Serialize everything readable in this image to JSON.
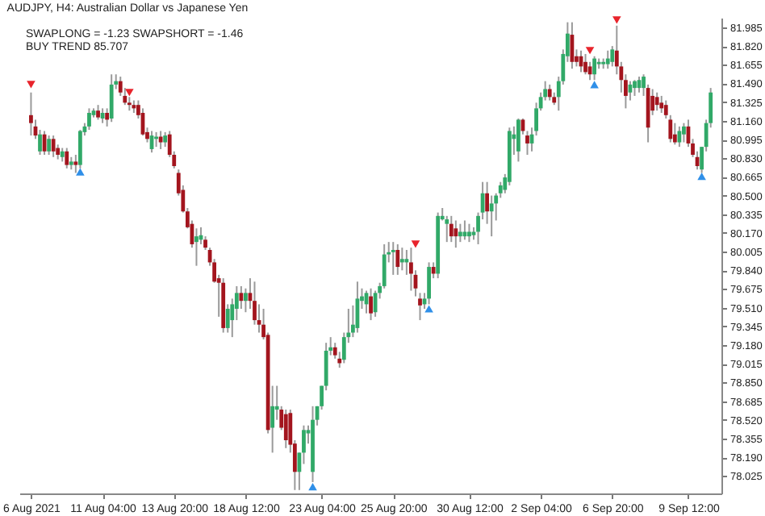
{
  "chart_data": {
    "type": "candlestick",
    "title": "AUDJPY, H4:  Australian Dollar vs Japanese Yen",
    "annotations": [
      "SWAPLONG = -1.23   SWAPSHORT = -1.46",
      "BUY TREND 85.707"
    ],
    "categories": [
      "6 Aug 2021",
      null,
      null,
      null,
      null,
      null,
      null,
      null,
      null,
      null,
      null,
      null,
      null,
      null,
      null,
      null,
      "11 Aug 04:00",
      null,
      null,
      null,
      null,
      null,
      null,
      null,
      null,
      null,
      null,
      null,
      null,
      null,
      null,
      null,
      "13 Aug 20:00",
      null,
      null,
      null,
      null,
      null,
      null,
      null,
      null,
      null,
      null,
      null,
      null,
      null,
      null,
      null,
      "18 Aug 12:00",
      null,
      null,
      null,
      null,
      null,
      null,
      null,
      null,
      null,
      null,
      null,
      null,
      null,
      null,
      null,
      null,
      "23 Aug 04:00",
      null,
      null,
      null,
      null,
      null,
      null,
      null,
      null,
      null,
      null,
      null,
      null,
      null,
      null,
      null,
      "25 Aug 20:00",
      null,
      null,
      null,
      null,
      null,
      null,
      null,
      null,
      null,
      null,
      null,
      null,
      null,
      null,
      null,
      null,
      "30 Aug 12:00",
      null,
      null,
      null,
      null,
      null,
      null,
      null,
      null,
      null,
      null,
      null,
      null,
      null,
      null,
      null,
      "2 Sep 04:00",
      null,
      null,
      null,
      null,
      null,
      null,
      null,
      null,
      null,
      null,
      null,
      null,
      null,
      null,
      null,
      "6 Sep 20:00",
      null,
      null,
      null,
      null,
      null,
      null,
      null,
      null,
      null,
      null,
      null,
      null,
      null,
      null,
      null,
      null,
      "9 Sep 12:00",
      null,
      null,
      null,
      null,
      null
    ],
    "ohlc": [
      [
        81.21,
        81.41,
        81.03,
        81.14
      ],
      [
        81.11,
        81.17,
        81.0,
        81.03
      ],
      [
        80.89,
        81.08,
        80.86,
        81.04
      ],
      [
        81.04,
        81.07,
        80.86,
        80.89
      ],
      [
        80.89,
        81.03,
        80.86,
        81.0
      ],
      [
        81.0,
        81.03,
        80.84,
        80.89
      ],
      [
        80.92,
        80.95,
        80.82,
        80.86
      ],
      [
        80.84,
        80.92,
        80.8,
        80.89
      ],
      [
        80.89,
        80.92,
        80.74,
        80.77
      ],
      [
        80.77,
        80.84,
        80.73,
        80.8
      ],
      [
        80.8,
        80.86,
        80.7,
        80.77
      ],
      [
        80.77,
        81.08,
        80.74,
        81.07
      ],
      [
        81.06,
        81.14,
        81.03,
        81.11
      ],
      [
        81.11,
        81.27,
        81.08,
        81.23
      ],
      [
        81.21,
        81.27,
        81.19,
        81.25
      ],
      [
        81.25,
        81.3,
        81.17,
        81.19
      ],
      [
        81.18,
        81.27,
        81.14,
        81.23
      ],
      [
        81.23,
        81.27,
        81.11,
        81.17
      ],
      [
        81.18,
        81.57,
        81.15,
        81.48
      ],
      [
        81.48,
        81.57,
        81.44,
        81.51
      ],
      [
        81.51,
        81.55,
        81.38,
        81.41
      ],
      [
        81.38,
        81.45,
        81.3,
        81.32
      ],
      [
        81.32,
        81.37,
        81.25,
        81.3
      ],
      [
        81.3,
        81.34,
        81.23,
        81.27
      ],
      [
        81.3,
        81.34,
        81.18,
        81.21
      ],
      [
        81.23,
        81.27,
        81.03,
        81.04
      ],
      [
        81.06,
        81.1,
        80.97,
        81.0
      ],
      [
        80.91,
        81.07,
        80.88,
        81.03
      ],
      [
        81.0,
        81.06,
        80.93,
        81.02
      ],
      [
        81.02,
        81.07,
        80.91,
        80.97
      ],
      [
        80.97,
        81.06,
        80.93,
        81.03
      ],
      [
        81.04,
        81.07,
        80.84,
        80.86
      ],
      [
        80.86,
        80.89,
        80.74,
        80.76
      ],
      [
        80.7,
        80.73,
        80.5,
        80.52
      ],
      [
        80.55,
        80.59,
        80.35,
        80.36
      ],
      [
        80.36,
        80.39,
        80.21,
        80.22
      ],
      [
        80.25,
        80.28,
        80.04,
        80.07
      ],
      [
        80.09,
        80.21,
        79.88,
        80.14
      ],
      [
        80.11,
        80.22,
        80.07,
        80.15
      ],
      [
        80.11,
        80.14,
        80.02,
        80.04
      ],
      [
        80.02,
        80.04,
        79.88,
        79.91
      ],
      [
        79.91,
        79.94,
        79.73,
        79.74
      ],
      [
        79.77,
        79.8,
        79.43,
        79.73
      ],
      [
        79.73,
        79.77,
        79.29,
        79.33
      ],
      [
        79.33,
        79.54,
        79.29,
        79.5
      ],
      [
        79.4,
        79.59,
        79.25,
        79.54
      ],
      [
        79.5,
        79.7,
        79.4,
        79.64
      ],
      [
        79.64,
        79.7,
        79.5,
        79.57
      ],
      [
        79.57,
        79.68,
        79.47,
        79.64
      ],
      [
        79.64,
        79.77,
        79.5,
        79.57
      ],
      [
        79.57,
        79.74,
        79.36,
        79.4
      ],
      [
        79.4,
        79.54,
        79.29,
        79.36
      ],
      [
        79.36,
        79.5,
        79.23,
        79.25
      ],
      [
        79.27,
        79.29,
        78.4,
        78.43
      ],
      [
        78.45,
        78.82,
        78.23,
        78.64
      ],
      [
        78.61,
        78.82,
        78.52,
        78.64
      ],
      [
        78.61,
        78.64,
        78.43,
        78.45
      ],
      [
        78.57,
        78.61,
        78.27,
        78.34
      ],
      [
        78.58,
        78.61,
        78.23,
        78.3
      ],
      [
        78.31,
        78.34,
        77.9,
        78.06
      ],
      [
        78.06,
        78.23,
        77.9,
        78.23
      ],
      [
        78.23,
        78.47,
        78.13,
        78.43
      ],
      [
        78.4,
        78.47,
        78.31,
        78.43
      ],
      [
        78.06,
        78.64,
        77.97,
        78.52
      ],
      [
        78.52,
        78.64,
        78.47,
        78.64
      ],
      [
        78.64,
        78.82,
        78.61,
        78.82
      ],
      [
        78.82,
        79.2,
        78.78,
        79.13
      ],
      [
        79.13,
        79.25,
        79.09,
        79.16
      ],
      [
        79.16,
        79.2,
        79.06,
        79.09
      ],
      [
        79.06,
        79.12,
        78.98,
        79.02
      ],
      [
        79.05,
        79.29,
        79.02,
        79.25
      ],
      [
        79.25,
        79.5,
        79.2,
        79.29
      ],
      [
        79.29,
        79.53,
        79.25,
        79.36
      ],
      [
        79.33,
        79.74,
        79.29,
        79.59
      ],
      [
        79.57,
        79.68,
        79.5,
        79.61
      ],
      [
        79.54,
        79.66,
        79.46,
        79.64
      ],
      [
        79.61,
        79.68,
        79.4,
        79.46
      ],
      [
        79.47,
        79.66,
        79.43,
        79.64
      ],
      [
        79.64,
        79.73,
        79.59,
        79.7
      ],
      [
        79.7,
        80.07,
        79.68,
        79.98
      ],
      [
        79.98,
        80.09,
        79.91,
        80.0
      ],
      [
        80.0,
        80.09,
        79.8,
        80.02
      ],
      [
        80.02,
        80.07,
        79.8,
        79.87
      ],
      [
        79.91,
        80.04,
        79.84,
        79.94
      ],
      [
        79.91,
        80.02,
        79.8,
        79.94
      ],
      [
        79.91,
        80.04,
        79.66,
        79.81
      ],
      [
        79.8,
        79.84,
        79.61,
        79.68
      ],
      [
        79.59,
        79.64,
        79.4,
        79.53
      ],
      [
        79.54,
        79.64,
        79.5,
        79.59
      ],
      [
        79.59,
        79.91,
        79.54,
        79.87
      ],
      [
        79.87,
        79.91,
        79.77,
        79.81
      ],
      [
        79.81,
        80.35,
        79.77,
        80.32
      ],
      [
        80.29,
        80.39,
        80.28,
        80.32
      ],
      [
        80.25,
        80.32,
        80.09,
        80.29
      ],
      [
        80.25,
        80.32,
        80.09,
        80.14
      ],
      [
        80.21,
        80.28,
        80.04,
        80.14
      ],
      [
        80.14,
        80.25,
        80.09,
        80.18
      ],
      [
        80.14,
        80.28,
        80.11,
        80.18
      ],
      [
        80.14,
        80.25,
        80.09,
        80.18
      ],
      [
        80.15,
        80.22,
        80.11,
        80.18
      ],
      [
        80.18,
        80.35,
        80.07,
        80.32
      ],
      [
        80.35,
        80.62,
        80.29,
        80.52
      ],
      [
        80.52,
        80.62,
        80.25,
        80.36
      ],
      [
        80.36,
        80.5,
        80.14,
        80.43
      ],
      [
        80.43,
        80.52,
        80.28,
        80.5
      ],
      [
        80.52,
        80.62,
        80.48,
        80.59
      ],
      [
        80.55,
        80.69,
        80.52,
        80.66
      ],
      [
        80.62,
        81.1,
        80.59,
        81.07
      ],
      [
        81.0,
        81.11,
        80.86,
        81.04
      ],
      [
        80.89,
        81.18,
        80.8,
        81.17
      ],
      [
        81.17,
        81.18,
        81.04,
        81.07
      ],
      [
        81.03,
        81.07,
        80.86,
        80.96
      ],
      [
        80.96,
        81.1,
        80.89,
        81.04
      ],
      [
        81.07,
        81.32,
        81.03,
        81.27
      ],
      [
        81.27,
        81.41,
        81.25,
        81.37
      ],
      [
        81.37,
        81.51,
        81.34,
        81.44
      ],
      [
        81.44,
        81.48,
        81.34,
        81.37
      ],
      [
        81.37,
        81.41,
        81.3,
        81.32
      ],
      [
        81.37,
        81.55,
        81.25,
        81.51
      ],
      [
        81.51,
        81.79,
        81.48,
        81.75
      ],
      [
        81.73,
        82.03,
        81.68,
        81.93
      ],
      [
        81.92,
        82.03,
        81.62,
        81.68
      ],
      [
        81.73,
        81.79,
        81.64,
        81.68
      ],
      [
        81.73,
        81.78,
        81.59,
        81.64
      ],
      [
        81.68,
        81.75,
        81.57,
        81.59
      ],
      [
        81.64,
        81.68,
        81.52,
        81.57
      ],
      [
        81.57,
        81.73,
        81.52,
        81.71
      ],
      [
        81.66,
        81.71,
        81.62,
        81.68
      ],
      [
        81.66,
        81.71,
        81.62,
        81.68
      ],
      [
        81.66,
        81.78,
        81.62,
        81.71
      ],
      [
        81.68,
        81.82,
        81.64,
        81.79
      ],
      [
        81.78,
        82.0,
        81.57,
        81.64
      ],
      [
        81.64,
        81.68,
        81.41,
        81.52
      ],
      [
        81.52,
        81.57,
        81.27,
        81.38
      ],
      [
        81.41,
        81.51,
        81.34,
        81.48
      ],
      [
        81.45,
        81.52,
        81.38,
        81.51
      ],
      [
        81.45,
        81.55,
        81.41,
        81.52
      ],
      [
        81.45,
        81.57,
        81.38,
        81.55
      ],
      [
        81.45,
        81.48,
        80.97,
        81.1
      ],
      [
        81.38,
        81.44,
        81.21,
        81.25
      ],
      [
        81.37,
        81.41,
        81.25,
        81.3
      ],
      [
        81.32,
        81.38,
        81.23,
        81.27
      ],
      [
        81.3,
        81.34,
        81.18,
        81.21
      ],
      [
        81.17,
        81.21,
        80.97,
        81.0
      ],
      [
        81.04,
        81.14,
        80.95,
        80.97
      ],
      [
        80.97,
        81.11,
        80.93,
        81.07
      ],
      [
        81.04,
        81.14,
        80.97,
        81.11
      ],
      [
        81.11,
        81.17,
        80.93,
        80.96
      ],
      [
        80.96,
        81.0,
        80.84,
        80.86
      ],
      [
        80.84,
        80.89,
        80.73,
        80.76
      ],
      [
        80.73,
        80.93,
        80.7,
        80.93
      ],
      [
        80.93,
        81.17,
        80.89,
        81.14
      ],
      [
        81.14,
        81.45,
        81.1,
        81.41
      ]
    ],
    "colors": [
      "#a3151e",
      "#a3151e",
      "#31a968",
      "#a3151e",
      "#31a968",
      "#a3151e",
      "#a3151e",
      "#31a968",
      "#a3151e",
      "#31a968",
      "#a3151e",
      "#31a968",
      "#31a968",
      "#31a968",
      "#31a968",
      "#a3151e",
      "#31a968",
      "#a3151e",
      "#31a968",
      "#31a968",
      "#a3151e",
      "#a3151e",
      "#a3151e",
      "#a3151e",
      "#a3151e",
      "#a3151e",
      "#a3151e",
      "#31a968",
      "#31a968",
      "#a3151e",
      "#31a968",
      "#a3151e",
      "#a3151e",
      "#a3151e",
      "#a3151e",
      "#a3151e",
      "#a3151e",
      "#31a968",
      "#31a968",
      "#a3151e",
      "#a3151e",
      "#a3151e",
      "#a3151e",
      "#a3151e",
      "#31a968",
      "#31a968",
      "#31a968",
      "#a3151e",
      "#31a968",
      "#a3151e",
      "#a3151e",
      "#a3151e",
      "#a3151e",
      "#a3151e",
      "#31a968",
      "#31a968",
      "#a3151e",
      "#a3151e",
      "#a3151e",
      "#a3151e",
      "#31a968",
      "#31a968",
      "#31a968",
      "#31a968",
      "#31a968",
      "#31a968",
      "#31a968",
      "#31a968",
      "#a3151e",
      "#a3151e",
      "#31a968",
      "#31a968",
      "#31a968",
      "#31a968",
      "#31a968",
      "#31a968",
      "#a3151e",
      "#31a968",
      "#31a968",
      "#31a968",
      "#31a968",
      "#31a968",
      "#a3151e",
      "#31a968",
      "#31a968",
      "#a3151e",
      "#a3151e",
      "#a3151e",
      "#31a968",
      "#31a968",
      "#a3151e",
      "#31a968",
      "#31a968",
      "#31a968",
      "#a3151e",
      "#a3151e",
      "#31a968",
      "#31a968",
      "#31a968",
      "#31a968",
      "#31a968",
      "#31a968",
      "#a3151e",
      "#31a968",
      "#31a968",
      "#31a968",
      "#31a968",
      "#31a968",
      "#31a968",
      "#31a968",
      "#a3151e",
      "#a3151e",
      "#31a968",
      "#31a968",
      "#31a968",
      "#31a968",
      "#a3151e",
      "#a3151e",
      "#31a968",
      "#31a968",
      "#31a968",
      "#a3151e",
      "#a3151e",
      "#a3151e",
      "#a3151e",
      "#a3151e",
      "#31a968",
      "#31a968",
      "#31a968",
      "#31a968",
      "#31a968",
      "#a3151e",
      "#a3151e",
      "#a3151e",
      "#31a968",
      "#31a968",
      "#31a968",
      "#31a968",
      "#a3151e",
      "#a3151e",
      "#a3151e",
      "#a3151e",
      "#a3151e",
      "#a3151e",
      "#a3151e",
      "#31a968",
      "#31a968",
      "#a3151e",
      "#a3151e",
      "#a3151e",
      "#31a968",
      "#31a968",
      "#31a968"
    ],
    "series": [
      {
        "type": "scatter",
        "marker": "triangle",
        "color": "#e8242c",
        "values": [
          81.48,
          null,
          null,
          null,
          null,
          null,
          null,
          null,
          null,
          null,
          null,
          null,
          null,
          null,
          null,
          null,
          null,
          null,
          null,
          null,
          null,
          null,
          81.41,
          null,
          null,
          null,
          null,
          null,
          null,
          null,
          null,
          null,
          null,
          null,
          null,
          null,
          null,
          null,
          null,
          null,
          null,
          null,
          null,
          null,
          null,
          null,
          null,
          null,
          null,
          null,
          null,
          null,
          null,
          null,
          null,
          null,
          null,
          null,
          null,
          null,
          null,
          null,
          null,
          null,
          null,
          null,
          null,
          null,
          null,
          null,
          null,
          null,
          null,
          null,
          null,
          null,
          null,
          null,
          null,
          null,
          null,
          null,
          null,
          null,
          null,
          null,
          80.07,
          null,
          null,
          null,
          null,
          null,
          null,
          null,
          null,
          null,
          null,
          null,
          null,
          null,
          null,
          null,
          null,
          null,
          null,
          null,
          null,
          null,
          null,
          null,
          null,
          null,
          null,
          null,
          null,
          null,
          null,
          null,
          null,
          null,
          null,
          null,
          null,
          null,
          null,
          81.78,
          null,
          null,
          null,
          null,
          null,
          82.05,
          null,
          null,
          null,
          null,
          null,
          null,
          null,
          null,
          null,
          null,
          null,
          null,
          null,
          null,
          null,
          null,
          null,
          null,
          null,
          null,
          null
        ]
      },
      {
        "type": "scatter",
        "marker": "triangle",
        "color": "#2f8fe8",
        "values": [
          null,
          null,
          null,
          null,
          null,
          null,
          null,
          null,
          null,
          null,
          null,
          80.71,
          null,
          null,
          null,
          null,
          null,
          null,
          null,
          null,
          null,
          null,
          null,
          null,
          null,
          null,
          null,
          null,
          null,
          null,
          null,
          null,
          null,
          null,
          null,
          null,
          null,
          null,
          null,
          null,
          null,
          null,
          null,
          null,
          null,
          null,
          null,
          null,
          null,
          null,
          null,
          null,
          null,
          null,
          null,
          null,
          null,
          null,
          null,
          null,
          null,
          null,
          null,
          77.93,
          null,
          null,
          null,
          null,
          null,
          null,
          null,
          null,
          null,
          null,
          null,
          null,
          null,
          null,
          null,
          null,
          null,
          null,
          null,
          null,
          null,
          null,
          null,
          null,
          null,
          79.5,
          null,
          null,
          null,
          null,
          null,
          null,
          null,
          null,
          null,
          null,
          null,
          null,
          null,
          null,
          null,
          null,
          null,
          null,
          null,
          null,
          null,
          null,
          null,
          null,
          null,
          null,
          null,
          null,
          null,
          null,
          null,
          null,
          null,
          null,
          null,
          null,
          81.48,
          null,
          null,
          null,
          null,
          null,
          null,
          null,
          null,
          null,
          null,
          null,
          null,
          null,
          null,
          null,
          null,
          null,
          null,
          null,
          null,
          null,
          null,
          null,
          80.67,
          null,
          null
        ]
      }
    ],
    "ylim": [
      77.87,
      82.07
    ],
    "yticks": [
      81.985,
      {
        "value": 81.82,
        "label": "81.820"
      },
      81.655,
      {
        "value": 81.49,
        "label": "81.490"
      },
      81.325,
      {
        "value": 81.16,
        "label": "81.160"
      },
      80.995,
      {
        "value": 80.83,
        "label": "80.830"
      },
      80.665,
      {
        "value": 80.5,
        "label": "80.500"
      },
      80.335,
      {
        "value": 80.17,
        "label": "80.170"
      },
      80.005,
      {
        "value": 79.84,
        "label": "79.840"
      },
      79.675,
      {
        "value": 79.51,
        "label": "79.510"
      },
      79.345,
      {
        "value": 79.18,
        "label": "79.180"
      },
      79.015,
      {
        "value": 78.85,
        "label": "78.850"
      },
      78.685,
      {
        "value": 78.52,
        "label": "78.520"
      },
      78.355,
      {
        "value": 78.19,
        "label": "78.190"
      },
      78.025
    ]
  }
}
